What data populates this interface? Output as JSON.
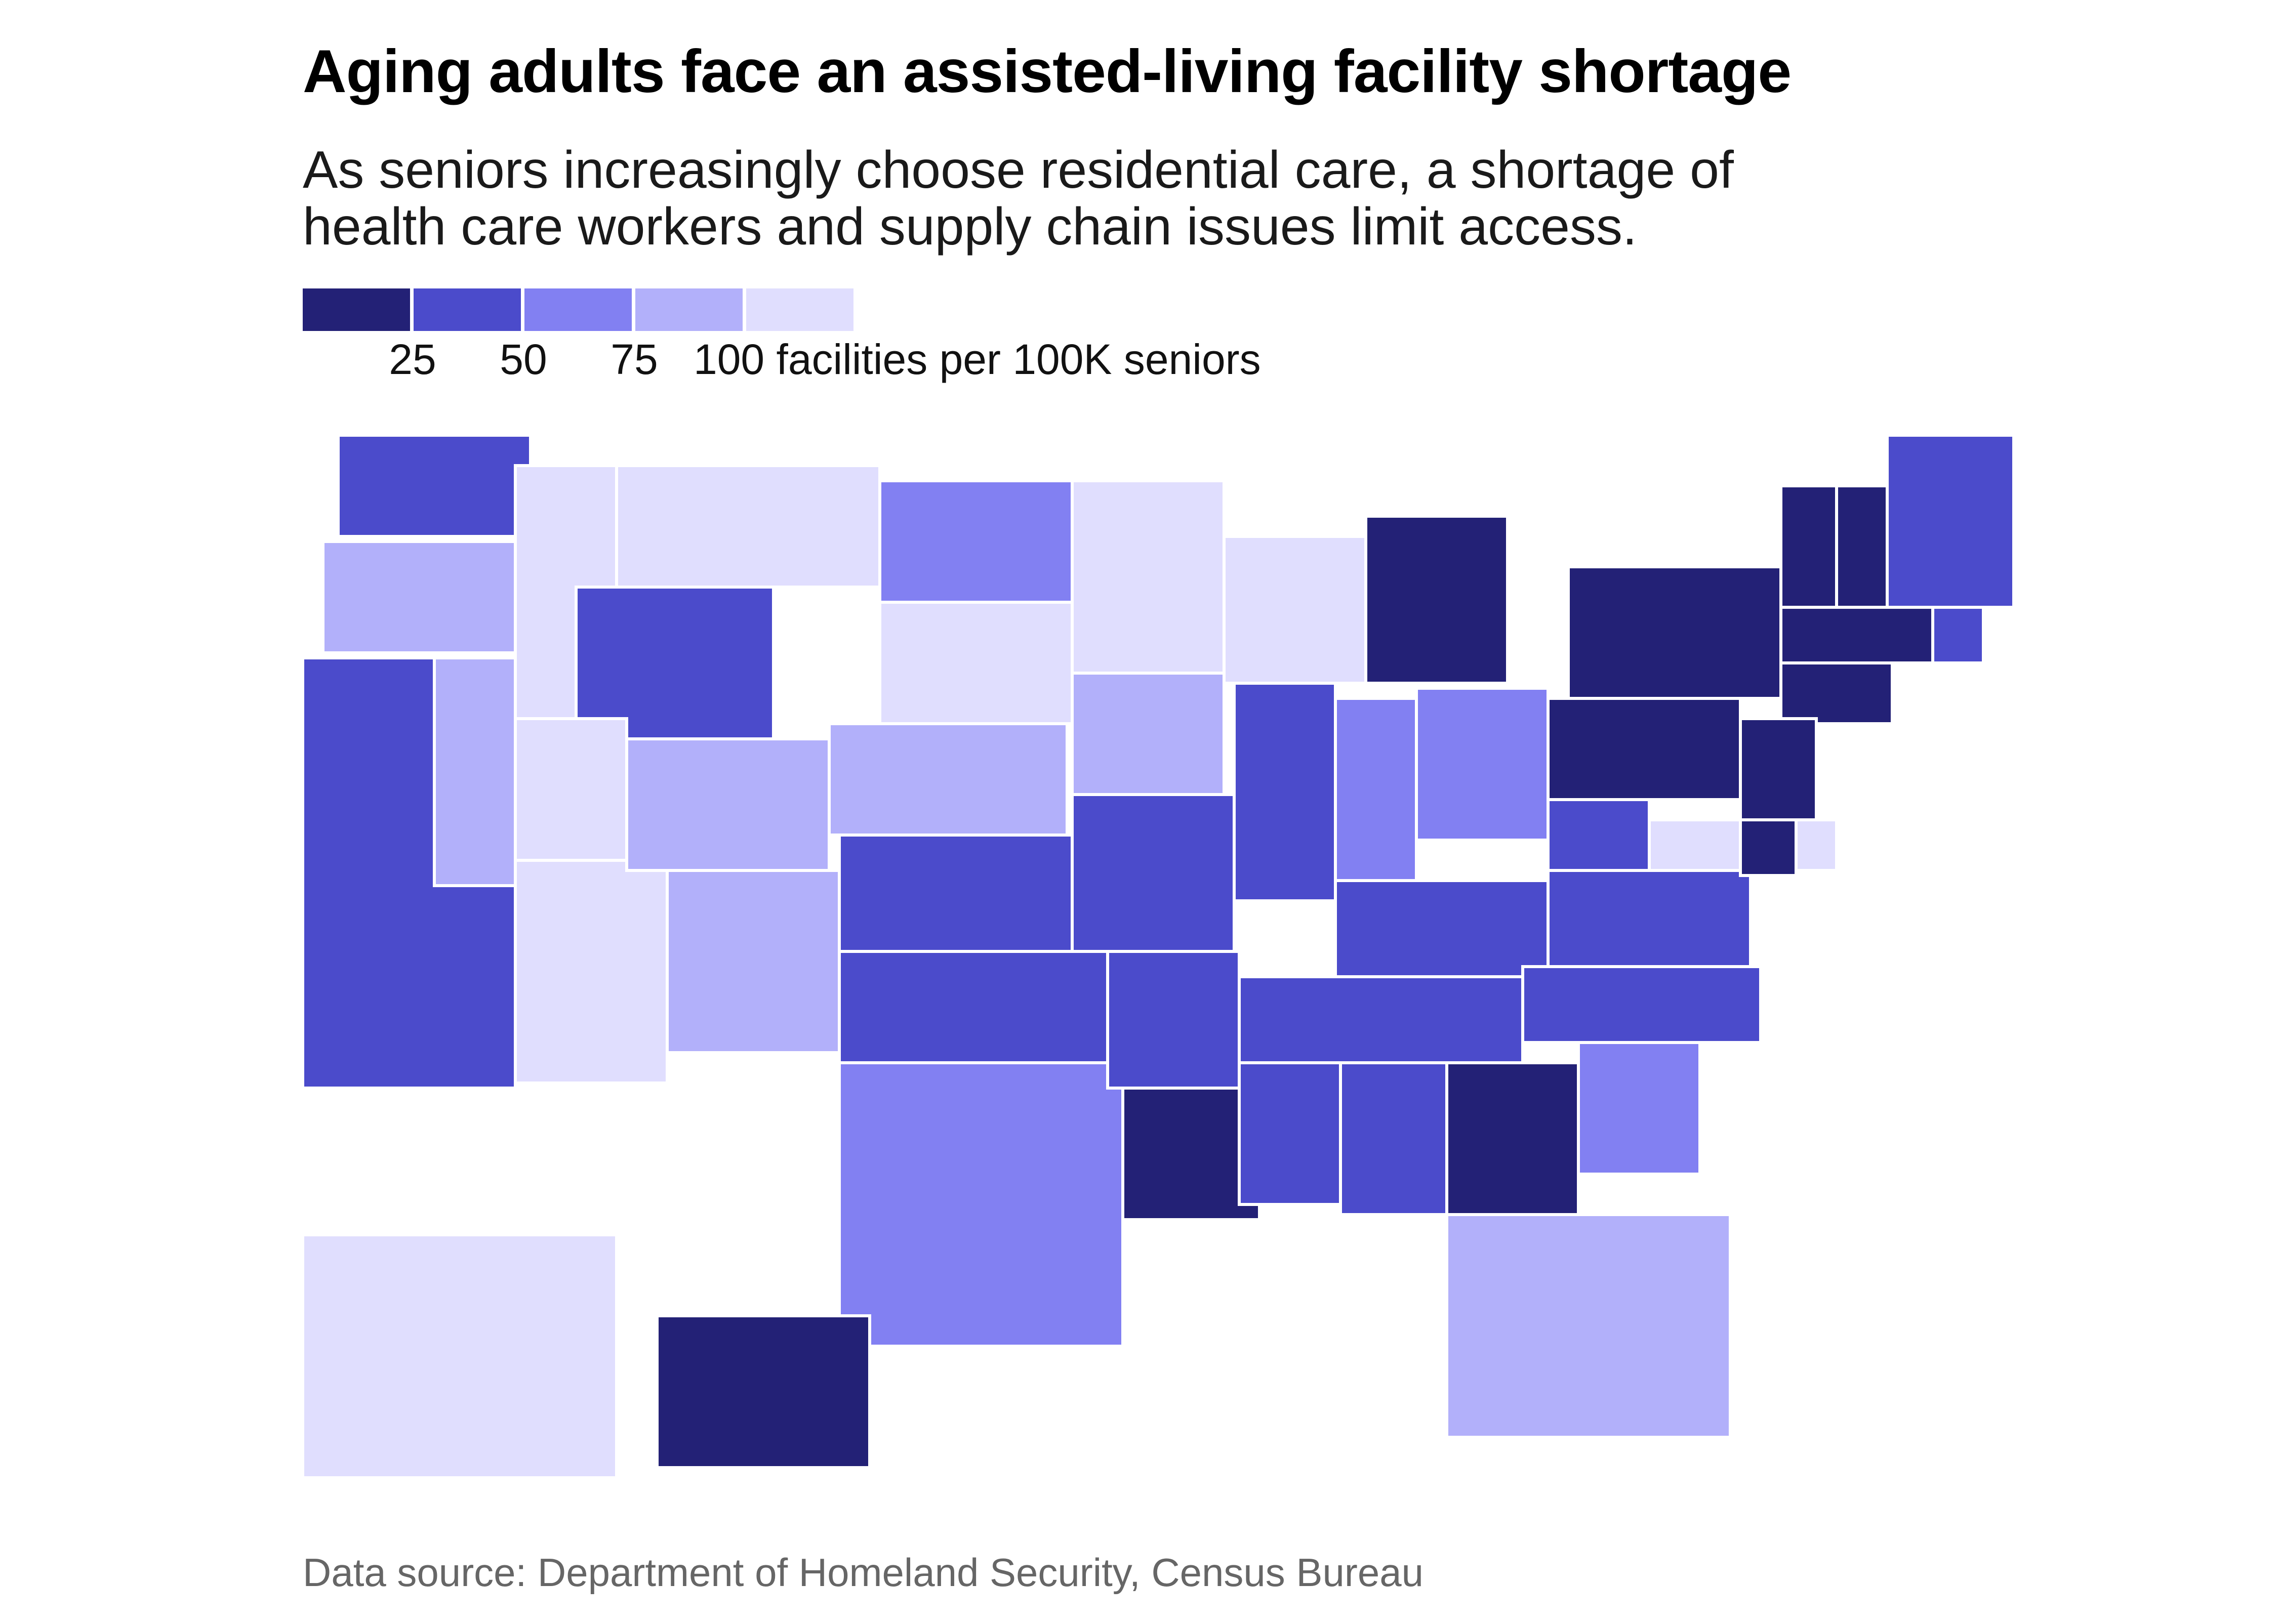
{
  "title": "Aging adults face an assisted-living facility shortage",
  "subtitle": [
    "As seniors increasingly choose residential care, a shortage of",
    "health care workers and supply chain issues limit access."
  ],
  "legend": {
    "bins": [
      {
        "color": "#232176"
      },
      {
        "color": "#4b4bcb"
      },
      {
        "color": "#8280f2"
      },
      {
        "color": "#b2b0fa"
      },
      {
        "color": "#e0defe"
      }
    ],
    "ticks": [
      "25",
      "50",
      "75"
    ],
    "end_label": "100 facilities per 100K seniors"
  },
  "source": "Data source: Department of Homeland Security, Census Bureau",
  "map_data": {
    "type": "choropleth",
    "region": "United States",
    "metric": "facilities per 100K seniors",
    "states": [
      {
        "abbr": "WA",
        "bin": 1
      },
      {
        "abbr": "OR",
        "bin": 3
      },
      {
        "abbr": "CA",
        "bin": 1
      },
      {
        "abbr": "NV",
        "bin": 3
      },
      {
        "abbr": "ID",
        "bin": 4
      },
      {
        "abbr": "MT",
        "bin": 4
      },
      {
        "abbr": "WY",
        "bin": 1
      },
      {
        "abbr": "UT",
        "bin": 4
      },
      {
        "abbr": "AZ",
        "bin": 4
      },
      {
        "abbr": "CO",
        "bin": 3
      },
      {
        "abbr": "NM",
        "bin": 3
      },
      {
        "abbr": "ND",
        "bin": 2
      },
      {
        "abbr": "SD",
        "bin": 4
      },
      {
        "abbr": "NE",
        "bin": 3
      },
      {
        "abbr": "KS",
        "bin": 1
      },
      {
        "abbr": "OK",
        "bin": 1
      },
      {
        "abbr": "TX",
        "bin": 2
      },
      {
        "abbr": "MN",
        "bin": 4
      },
      {
        "abbr": "IA",
        "bin": 3
      },
      {
        "abbr": "MO",
        "bin": 1
      },
      {
        "abbr": "AR",
        "bin": 1
      },
      {
        "abbr": "LA",
        "bin": 0
      },
      {
        "abbr": "WI",
        "bin": 4
      },
      {
        "abbr": "IL",
        "bin": 1
      },
      {
        "abbr": "MI",
        "bin": 0
      },
      {
        "abbr": "IN",
        "bin": 2
      },
      {
        "abbr": "OH",
        "bin": 2
      },
      {
        "abbr": "KY",
        "bin": 1
      },
      {
        "abbr": "TN",
        "bin": 1
      },
      {
        "abbr": "MS",
        "bin": 1
      },
      {
        "abbr": "AL",
        "bin": 1
      },
      {
        "abbr": "GA",
        "bin": 0
      },
      {
        "abbr": "FL",
        "bin": 3
      },
      {
        "abbr": "SC",
        "bin": 2
      },
      {
        "abbr": "NC",
        "bin": 1
      },
      {
        "abbr": "VA",
        "bin": 1
      },
      {
        "abbr": "WV",
        "bin": 1
      },
      {
        "abbr": "PA",
        "bin": 0
      },
      {
        "abbr": "NY",
        "bin": 0
      },
      {
        "abbr": "VT",
        "bin": 0
      },
      {
        "abbr": "NH",
        "bin": 0
      },
      {
        "abbr": "ME",
        "bin": 1
      },
      {
        "abbr": "MA",
        "bin": 0
      },
      {
        "abbr": "RI",
        "bin": 1
      },
      {
        "abbr": "CT",
        "bin": 0
      },
      {
        "abbr": "NJ",
        "bin": 0
      },
      {
        "abbr": "DE",
        "bin": 0
      },
      {
        "abbr": "MD",
        "bin": 4
      },
      {
        "abbr": "DC",
        "bin": 4
      },
      {
        "abbr": "AK",
        "bin": 4
      },
      {
        "abbr": "HI",
        "bin": 0
      }
    ]
  }
}
